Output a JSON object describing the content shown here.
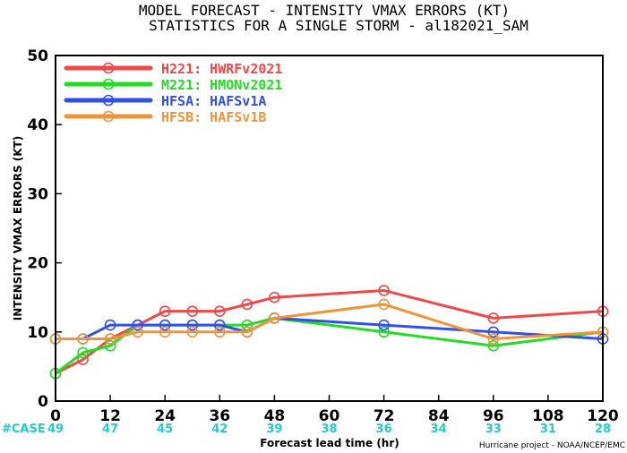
{
  "chart_data": {
    "type": "line",
    "title": "MODEL FORECAST - INTENSITY VMAX ERRORS (KT)",
    "subtitle": "STATISTICS FOR A SINGLE STORM - al182021_SAM",
    "xlabel": "Forecast lead time (hr)",
    "ylabel": "INTENSITY VMAX ERRORS (KT)",
    "xlim": [
      0,
      120
    ],
    "ylim": [
      0,
      50
    ],
    "x_ticks": [
      0,
      12,
      24,
      36,
      48,
      60,
      72,
      84,
      96,
      108,
      120
    ],
    "y_ticks": [
      0,
      10,
      20,
      30,
      40,
      50
    ],
    "grid": false,
    "legend_position": "top-left",
    "series": [
      {
        "name": "H221:  HWRFv2021",
        "color": "#f04848",
        "x": [
          0,
          6,
          12,
          18,
          24,
          30,
          36,
          42,
          48,
          72,
          96,
          120
        ],
        "values": [
          4,
          6,
          9,
          11,
          13,
          13,
          13,
          14,
          15,
          16,
          12,
          13
        ]
      },
      {
        "name": "M221:  HMONv2021",
        "color": "#22dd22",
        "x": [
          0,
          6,
          12,
          18,
          24,
          30,
          36,
          42,
          48,
          72,
          96,
          120
        ],
        "values": [
          4,
          7,
          8,
          11,
          11,
          11,
          11,
          11,
          12,
          10,
          8,
          10
        ]
      },
      {
        "name": "HFSA:  HAFSv1A",
        "color": "#3050e8",
        "x": [
          0,
          6,
          12,
          18,
          24,
          30,
          36,
          42,
          48,
          72,
          96,
          120
        ],
        "values": [
          9,
          9,
          11,
          11,
          11,
          11,
          11,
          10,
          12,
          11,
          10,
          9
        ]
      },
      {
        "name": "HFSB:  HAFSv1B",
        "color": "#f0943a",
        "x": [
          0,
          6,
          12,
          18,
          24,
          30,
          36,
          42,
          48,
          72,
          96,
          120
        ],
        "values": [
          9,
          9,
          9,
          10,
          10,
          10,
          10,
          10,
          12,
          14,
          9,
          10
        ]
      }
    ],
    "cases": {
      "label": "#CASE",
      "label_color": "#22cccc",
      "value_color": "#22cccc",
      "x": [
        0,
        12,
        24,
        36,
        48,
        60,
        72,
        84,
        96,
        108,
        120
      ],
      "values": [
        "49",
        "47",
        "45",
        "42",
        "39",
        "38",
        "36",
        "34",
        "33",
        "31",
        "28"
      ]
    },
    "credit": "Hurricane project - NOAA/NCEP/EMC"
  }
}
